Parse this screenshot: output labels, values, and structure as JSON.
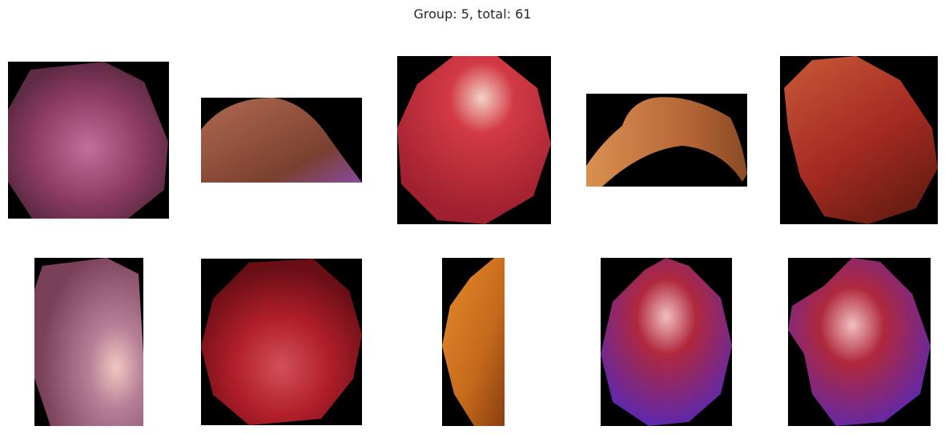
{
  "figure": {
    "title": "Group: 5, total: 61"
  },
  "images": [
    {
      "name": "purple-fruit-crop",
      "colors": [
        "#c0709a",
        "#8a3a5e",
        "#5e2a44"
      ]
    },
    {
      "name": "brown-fruit-edge-crop",
      "colors": [
        "#b06a50",
        "#7a4030",
        "#8a4aa0"
      ]
    },
    {
      "name": "red-apple-highlight-crop",
      "colors": [
        "#d23a45",
        "#a02030",
        "#f2d2c6"
      ]
    },
    {
      "name": "orange-peel-crop",
      "colors": [
        "#d99050",
        "#b86838",
        "#8a4a24"
      ]
    },
    {
      "name": "red-orange-fruit-crop",
      "colors": [
        "#c85a38",
        "#a52a22",
        "#6e1e14"
      ]
    },
    {
      "name": "pink-purple-fruit-crop",
      "colors": [
        "#b88098",
        "#7a405a",
        "#f0c8c0"
      ]
    },
    {
      "name": "dark-red-apple-crop",
      "colors": [
        "#b01e2a",
        "#6a0e16",
        "#d2505a"
      ]
    },
    {
      "name": "orange-fruit-sliver-crop",
      "colors": [
        "#e88a2a",
        "#c46a1c",
        "#8a3e10"
      ]
    },
    {
      "name": "red-blue-fruit-crop",
      "colors": [
        "#b0283c",
        "#4a28c8",
        "#f0c0c0"
      ]
    },
    {
      "name": "red-blue-fruit-stem-crop",
      "colors": [
        "#b0283c",
        "#4a28c8",
        "#f0c0c0"
      ]
    }
  ]
}
